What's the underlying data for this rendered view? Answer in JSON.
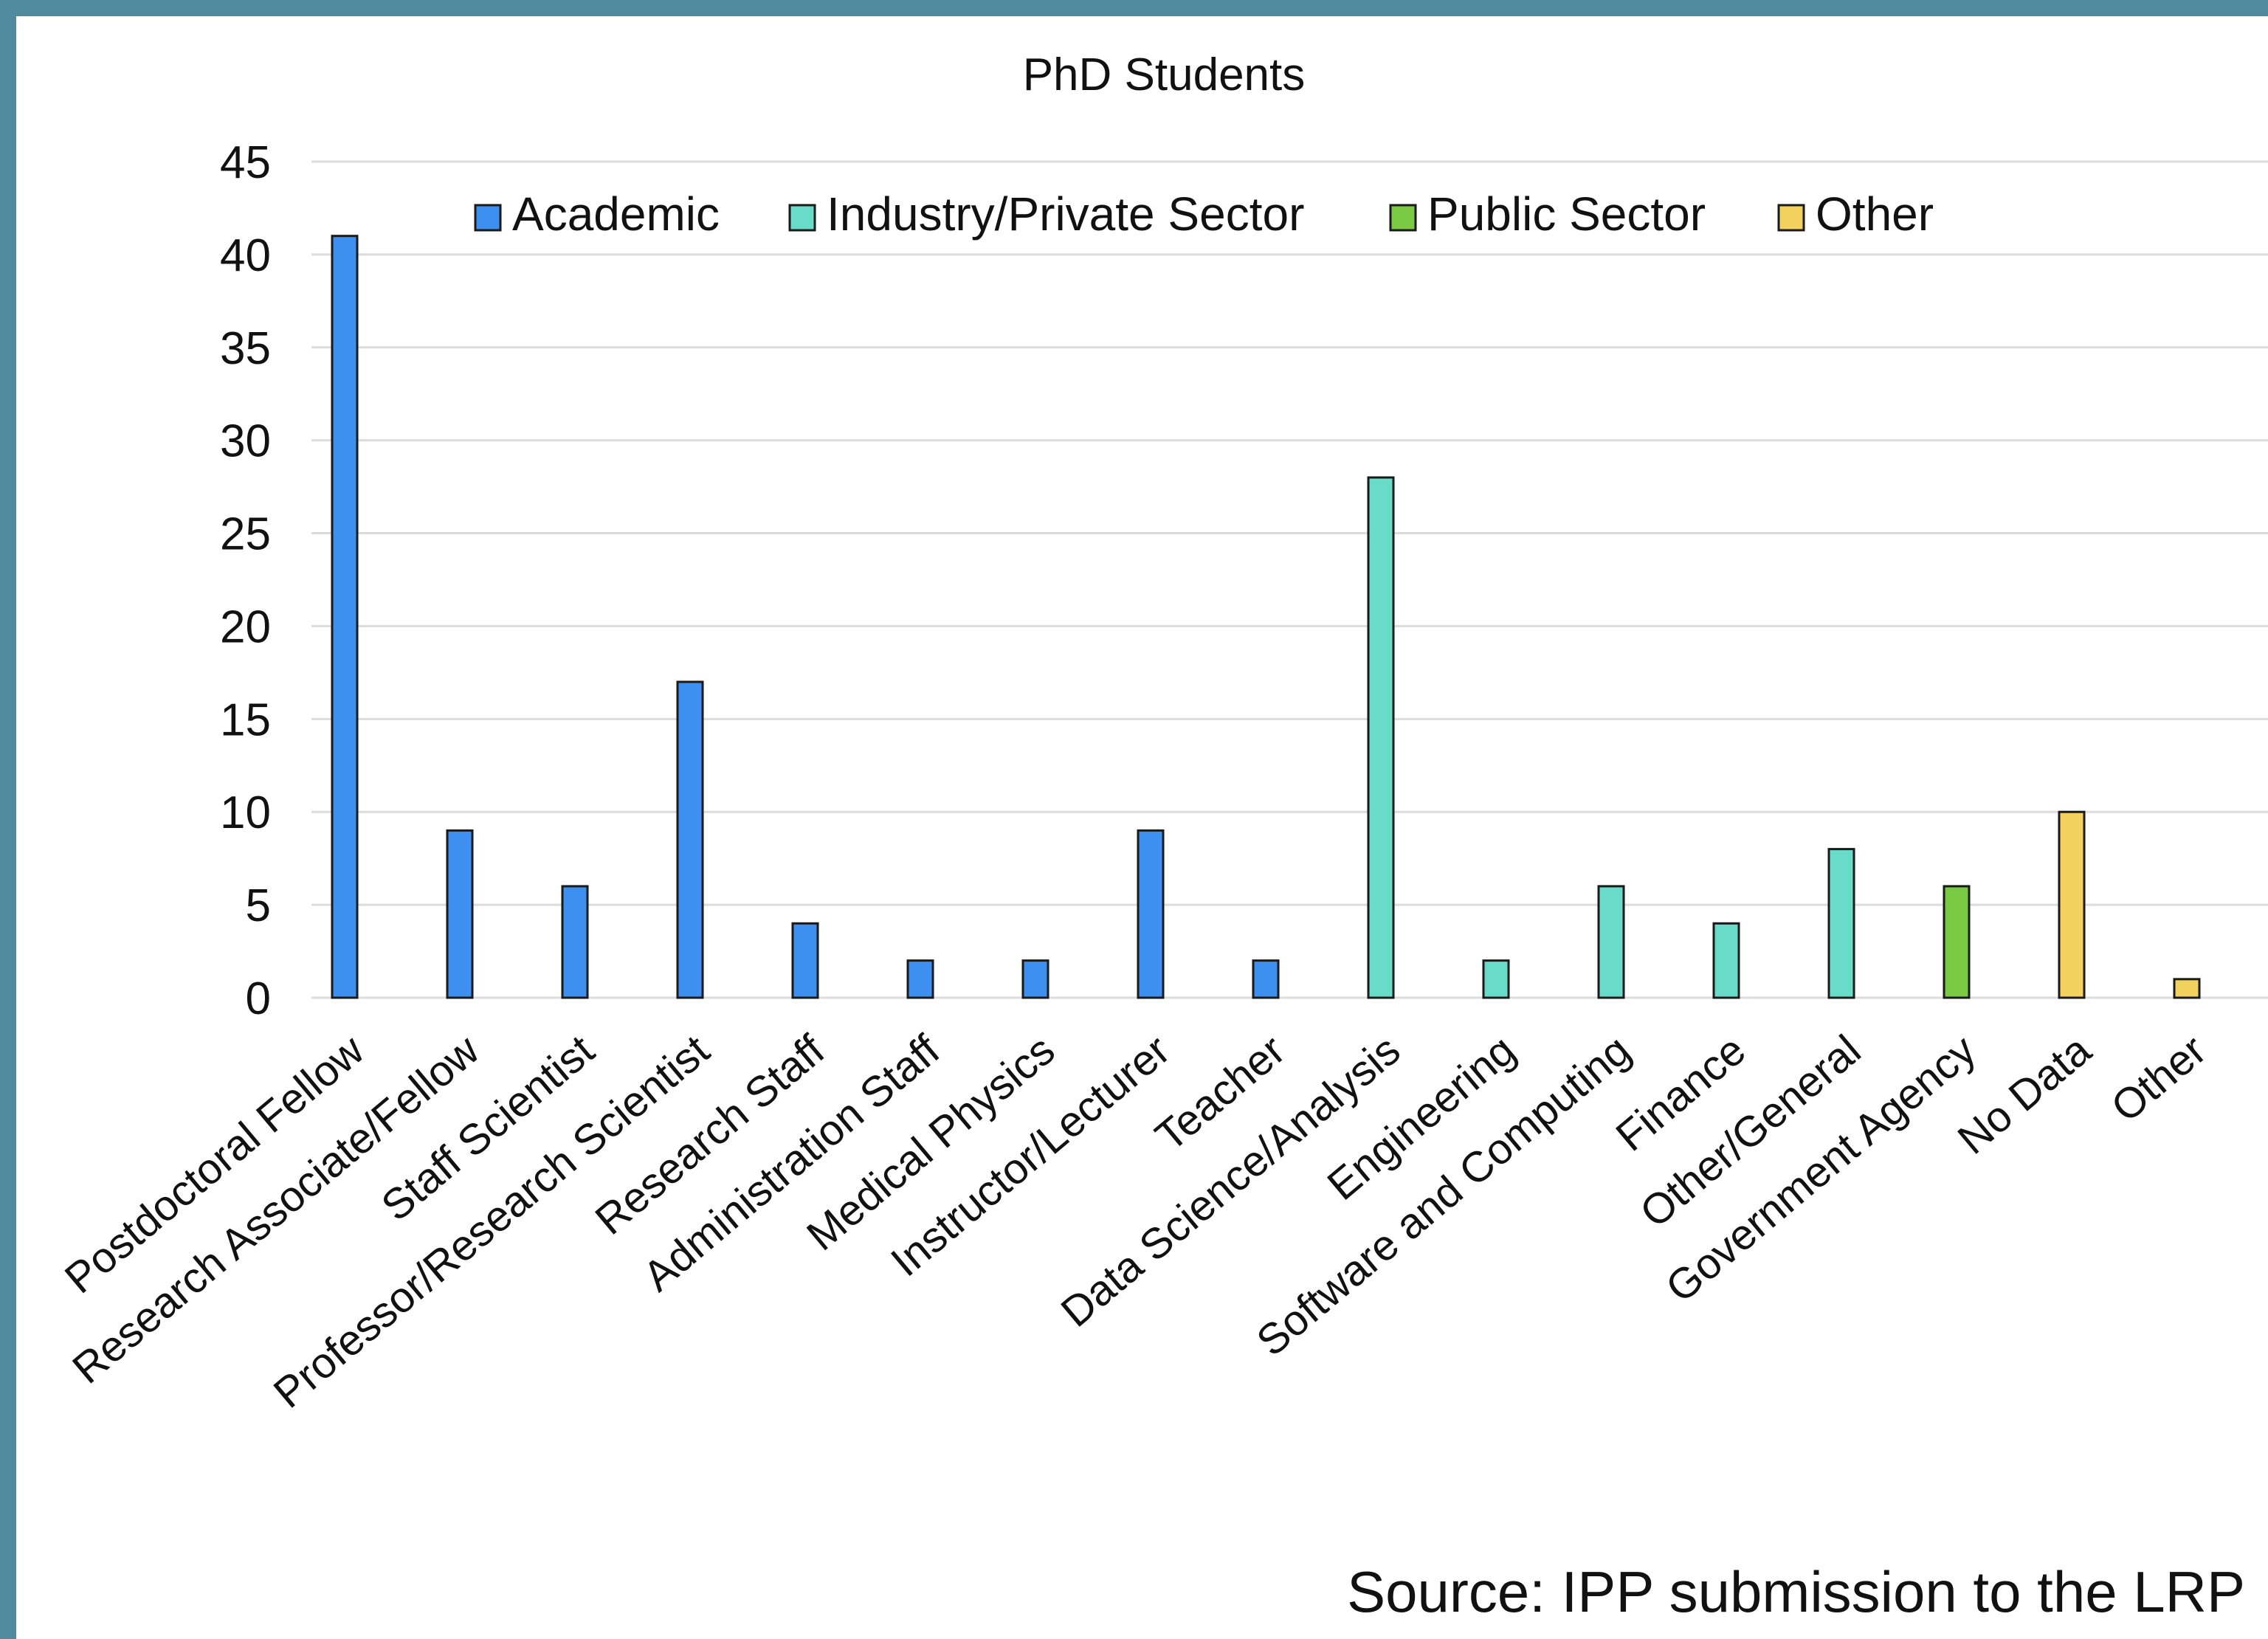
{
  "chart_data": {
    "type": "bar",
    "title": "PhD Students",
    "xlabel": "",
    "ylabel": "",
    "ylim": [
      0,
      45
    ],
    "yticks": [
      0,
      5,
      10,
      15,
      20,
      25,
      30,
      35,
      40,
      45
    ],
    "grid": true,
    "legend_position": "top",
    "categories": [
      "Postdoctoral Fellow",
      "Research Associate/Fellow",
      "Staff Scientist",
      "Professor/Research Scientist",
      "Research Staff",
      "Administration Staff",
      "Medical Physics",
      "Instructor/Lecturer",
      "Teacher",
      "Data Science/Analysis",
      "Engineering",
      "Software and Computing",
      "Finance",
      "Other/General",
      "Government Agency",
      "No Data",
      "Other"
    ],
    "series": [
      {
        "name": "Academic",
        "color": "#3d8ff0",
        "values": [
          41,
          9,
          6,
          17,
          4,
          2,
          2,
          9,
          2,
          null,
          null,
          null,
          null,
          null,
          null,
          null,
          null
        ]
      },
      {
        "name": "Industry/Private Sector",
        "color": "#68dcc8",
        "values": [
          null,
          null,
          null,
          null,
          null,
          null,
          null,
          null,
          null,
          28,
          2,
          6,
          4,
          8,
          null,
          null,
          null
        ]
      },
      {
        "name": "Public Sector",
        "color": "#7ac943",
        "values": [
          null,
          null,
          null,
          null,
          null,
          null,
          null,
          null,
          null,
          null,
          null,
          null,
          null,
          null,
          6,
          null,
          null
        ]
      },
      {
        "name": "Other",
        "color": "#f2d15c",
        "values": [
          null,
          null,
          null,
          null,
          null,
          null,
          null,
          null,
          null,
          null,
          null,
          null,
          null,
          null,
          null,
          10,
          1
        ]
      }
    ],
    "source": "Source: IPP submission to the LRP"
  }
}
